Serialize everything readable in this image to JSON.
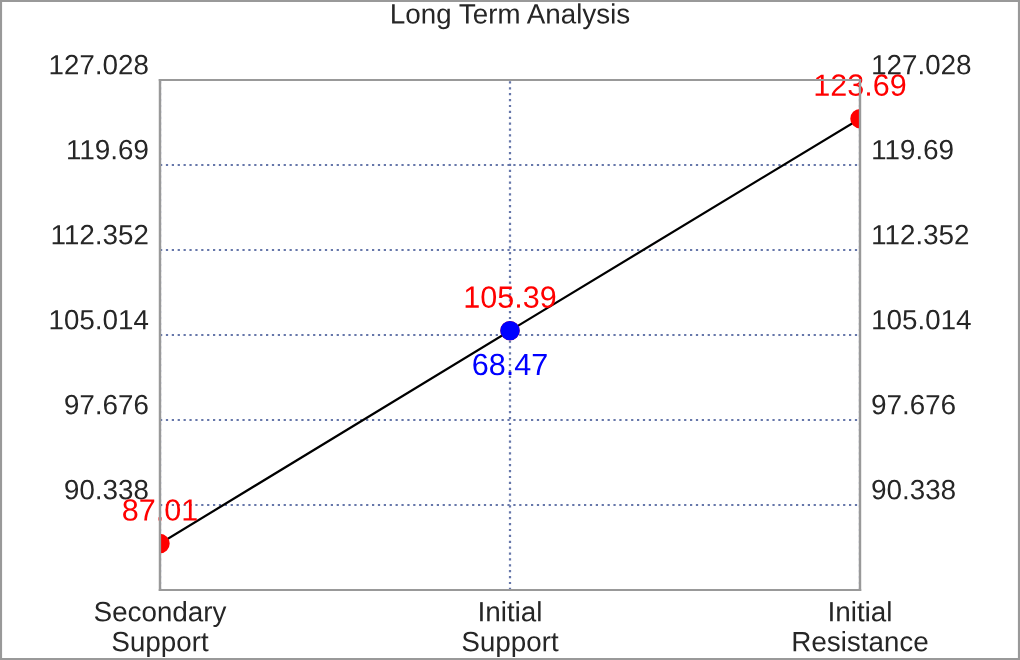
{
  "chart_data": {
    "type": "line",
    "title": "Long Term Analysis",
    "categories": [
      "Secondary\nSupport",
      "Initial\nSupport",
      "Initial\nResistance"
    ],
    "series": [
      {
        "color": "#ff0000",
        "values": [
          87.01,
          105.39,
          123.69
        ],
        "value_labels": [
          "87.01",
          "105.39",
          "123.69"
        ]
      },
      {
        "type": "scatter",
        "color": "#0000ff",
        "values": [
          null,
          105.39,
          null
        ]
      }
    ],
    "annotations": [
      {
        "text": "68.47",
        "x": "Initial\nSupport",
        "y": 105.39
      }
    ],
    "ylim": [
      83.0,
      127.028
    ],
    "yticks": [
      90.338,
      97.676,
      105.014,
      112.352,
      119.69,
      127.028
    ],
    "y2lim": [
      83.0,
      127.028
    ],
    "y2ticks": [
      90.338,
      97.676,
      105.014,
      112.352,
      119.69,
      127.028
    ],
    "grid": true,
    "marker": "circle"
  }
}
